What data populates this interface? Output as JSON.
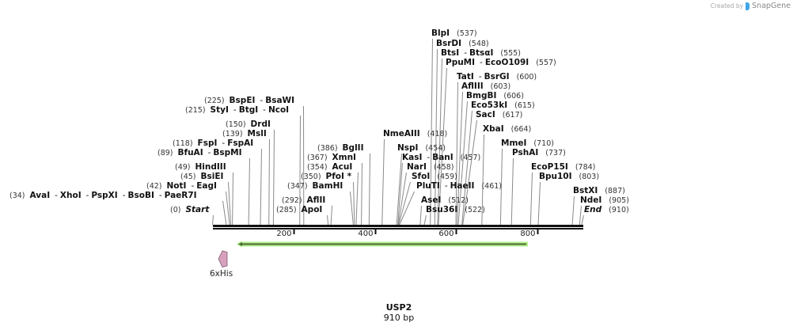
{
  "watermark": {
    "prefix": "Created by",
    "brand": "SnapGene"
  },
  "sequence": {
    "name": "USP2",
    "length_label": "910 bp",
    "length": 910
  },
  "ruler": {
    "ticks": [
      {
        "bp": 200,
        "label": "200"
      },
      {
        "bp": 400,
        "label": "400"
      },
      {
        "bp": 600,
        "label": "600"
      },
      {
        "bp": 800,
        "label": "800"
      }
    ]
  },
  "features": [
    {
      "id": "orf",
      "name": "",
      "type": "ORF",
      "direction": "reverse",
      "start": 62,
      "end": 777,
      "color": "#b6ef8a",
      "stroke": "#4b6b3a"
    },
    {
      "id": "his",
      "name": "6xHis",
      "type": "tag",
      "direction": "reverse",
      "start": 15,
      "end": 36,
      "color": "#d7a1bd",
      "stroke": "#7a5a6a"
    }
  ],
  "sites": [
    {
      "id": "blpi",
      "names": [
        "BlpI"
      ],
      "pos": "(537)",
      "site": 537
    },
    {
      "id": "bsrdi",
      "names": [
        "BsrDI"
      ],
      "pos": "(548)",
      "site": 548
    },
    {
      "id": "btsi",
      "names": [
        "BtsI",
        "BtsαI"
      ],
      "pos": "(555)",
      "site": 555
    },
    {
      "id": "ppumi",
      "names": [
        "PpuMI",
        "EcoO109I"
      ],
      "pos": "(557)",
      "site": 557
    },
    {
      "id": "tati",
      "names": [
        "TatI",
        "BsrGI"
      ],
      "pos": "(600)",
      "site": 600
    },
    {
      "id": "afliii",
      "names": [
        "AflIII"
      ],
      "pos": "(603)",
      "site": 603
    },
    {
      "id": "bmgbi",
      "names": [
        "BmgBI"
      ],
      "pos": "(606)",
      "site": 606
    },
    {
      "id": "eco53ki",
      "names": [
        "Eco53kI"
      ],
      "pos": "(615)",
      "site": 615
    },
    {
      "id": "saci",
      "names": [
        "SacI"
      ],
      "pos": "(617)",
      "site": 617
    },
    {
      "id": "xbai",
      "names": [
        "XbaI"
      ],
      "pos": "(664)",
      "site": 664
    },
    {
      "id": "mmei",
      "names": [
        "MmeI"
      ],
      "pos": "(710)",
      "site": 710
    },
    {
      "id": "pshai",
      "names": [
        "PshAI"
      ],
      "pos": "(737)",
      "site": 737
    },
    {
      "id": "ecop15i",
      "names": [
        "EcoP15I"
      ],
      "pos": "(784)",
      "site": 784
    },
    {
      "id": "bpu10i",
      "names": [
        "Bpu10I"
      ],
      "pos": "(803)",
      "site": 803
    },
    {
      "id": "bstxi",
      "names": [
        "BstXI"
      ],
      "pos": "(887)",
      "site": 887
    },
    {
      "id": "ndei",
      "names": [
        "NdeI"
      ],
      "pos": "(905)",
      "site": 905
    },
    {
      "id": "end",
      "names": [
        "End"
      ],
      "pos": "(910)",
      "site": 910,
      "kind": "marker"
    },
    {
      "id": "bspei",
      "names": [
        "BspEI",
        "BsaWI"
      ],
      "pos": "(225)",
      "site": 225
    },
    {
      "id": "styi",
      "names": [
        "StyI",
        "BtgI",
        "NcoI"
      ],
      "pos": "(215)",
      "site": 215
    },
    {
      "id": "drdi",
      "names": [
        "DrdI"
      ],
      "pos": "(150)",
      "site": 150
    },
    {
      "id": "msli",
      "names": [
        "MslI"
      ],
      "pos": "(139)",
      "site": 139
    },
    {
      "id": "fspi",
      "names": [
        "FspI",
        "FspAI"
      ],
      "pos": "(118)",
      "site": 118
    },
    {
      "id": "bfuai",
      "names": [
        "BfuAI",
        "BspMI"
      ],
      "pos": "(89)",
      "site": 89
    },
    {
      "id": "hindiii",
      "names": [
        "HindIII"
      ],
      "pos": "(49)",
      "site": 49
    },
    {
      "id": "bsiei",
      "names": [
        "BsiEI"
      ],
      "pos": "(45)",
      "site": 45
    },
    {
      "id": "noti",
      "names": [
        "NotI",
        "EagI"
      ],
      "pos": "(42)",
      "site": 42
    },
    {
      "id": "avai",
      "names": [
        "AvaI",
        "XhoI",
        "PspXI",
        "BsoBI",
        "PaeR7I"
      ],
      "pos": "(34)",
      "site": 34
    },
    {
      "id": "start",
      "names": [
        "Start"
      ],
      "pos": "(0)",
      "site": 0,
      "kind": "marker"
    },
    {
      "id": "bglii",
      "names": [
        "BglII"
      ],
      "pos": "(386)",
      "site": 386
    },
    {
      "id": "xmni",
      "names": [
        "XmnI"
      ],
      "pos": "(367)",
      "site": 367
    },
    {
      "id": "acui",
      "names": [
        "AcuI"
      ],
      "pos": "(354)",
      "site": 354
    },
    {
      "id": "pfoi",
      "names": [
        "PfoI *"
      ],
      "pos": "(350)",
      "site": 350
    },
    {
      "id": "bamhi",
      "names": [
        "BamHI"
      ],
      "pos": "(347)",
      "site": 347
    },
    {
      "id": "aflii",
      "names": [
        "AflII"
      ],
      "pos": "(292)",
      "site": 292
    },
    {
      "id": "apoi",
      "names": [
        "ApoI"
      ],
      "pos": "(285)",
      "site": 285
    },
    {
      "id": "nmeaiii",
      "names": [
        "NmeAIII"
      ],
      "pos": "(418)",
      "site": 418
    },
    {
      "id": "nspi",
      "names": [
        "NspI"
      ],
      "pos": "(454)",
      "site": 454
    },
    {
      "id": "kasi",
      "names": [
        "KasI",
        "BanI"
      ],
      "pos": "(457)",
      "site": 457
    },
    {
      "id": "nari",
      "names": [
        "NarI"
      ],
      "pos": "(458)",
      "site": 458
    },
    {
      "id": "sfoi",
      "names": [
        "SfoI"
      ],
      "pos": "(459)",
      "site": 459
    },
    {
      "id": "pluti",
      "names": [
        "PluTI",
        "HaeII"
      ],
      "pos": "(461)",
      "site": 461
    },
    {
      "id": "asei",
      "names": [
        "AseI"
      ],
      "pos": "(512)",
      "site": 512
    },
    {
      "id": "bsu36i",
      "names": [
        "Bsu36I"
      ],
      "pos": "(522)",
      "site": 522
    }
  ]
}
